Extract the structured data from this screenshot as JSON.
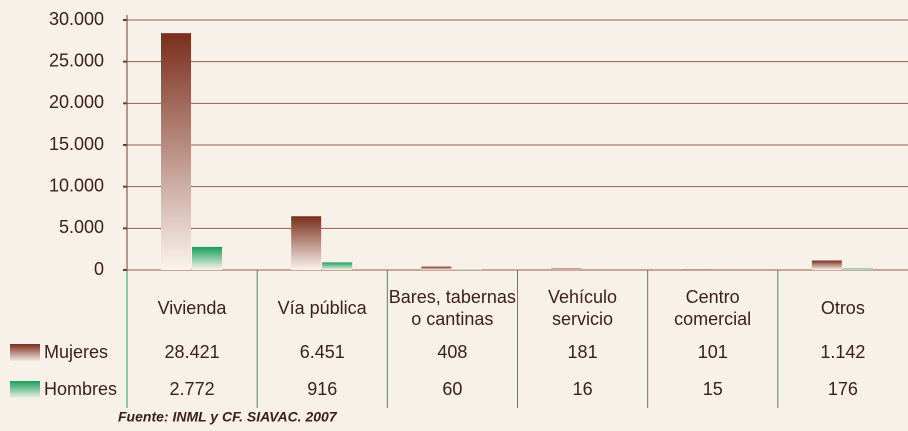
{
  "chart_data": {
    "type": "bar",
    "categories": [
      "Vivienda",
      "Vía pública",
      "Bares, tabernas\no cantinas",
      "Vehículo\nservicio",
      "Centro\ncomercial",
      "Otros"
    ],
    "series": [
      {
        "name": "Mujeres",
        "color": "#7a2e1c",
        "values": [
          28421,
          6451,
          408,
          181,
          101,
          1142
        ],
        "value_labels": [
          "28.421",
          "6.451",
          "408",
          "181",
          "101",
          "1.142"
        ]
      },
      {
        "name": "Hombres",
        "color": "#17a05a",
        "values": [
          2772,
          916,
          60,
          16,
          15,
          176
        ],
        "value_labels": [
          "2.772",
          "916",
          "60",
          "16",
          "15",
          "176"
        ]
      }
    ],
    "ylim": [
      0,
      30000
    ],
    "yticks": [
      0,
      {
        "value": 5000,
        "label": "5.000"
      },
      {
        "value": 10000,
        "label": "10.000"
      },
      {
        "value": 15000,
        "label": "15.000"
      },
      {
        "value": 20000,
        "label": "20.000"
      },
      {
        "value": 25000,
        "label": "25.000"
      },
      {
        "value": 30000,
        "label": "30.000"
      }
    ],
    "grid": true,
    "source": "Fuente: INML y CF. SIAVAC. 2007"
  }
}
